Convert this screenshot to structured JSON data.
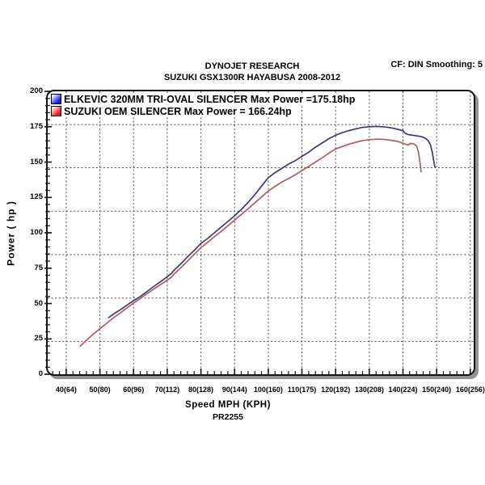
{
  "header": {
    "line1": "DYNOJET RESEARCH",
    "line2": "SUZUKI GSX1300R HAYABUSA 2008-2012",
    "right": "CF: DIN  Smoothing: 5"
  },
  "legend": [
    {
      "label": "ELKEVIC 320MM TRI-OVAL SILENCER  Max Power =175.18hp",
      "swatch_color": "#1a1ae8"
    },
    {
      "label": "SUZUKI OEM SILENCER Max Power = 166.24hp",
      "swatch_color": "#e81a1a"
    }
  ],
  "axes": {
    "x": {
      "title": "Speed MPH (KPH)",
      "tick_mph": [
        40,
        50,
        60,
        70,
        80,
        90,
        100,
        110,
        120,
        130,
        140,
        150,
        160
      ],
      "tick_labels": [
        "40(64)",
        "50(80)",
        "60(96)",
        "70(112)",
        "80(128)",
        "90(144)",
        "100(160)",
        "110(175)",
        "120(192)",
        "130(208)",
        "140(224)",
        "150(240)",
        "160(256)"
      ],
      "minor_step": 2
    },
    "y": {
      "title": "Power ( hp )",
      "ticks": [
        0,
        25,
        50,
        75,
        100,
        125,
        150,
        175,
        200
      ],
      "minor_step": 5
    }
  },
  "gridlines": {
    "vertical_mph": [
      40,
      50,
      60,
      70,
      80,
      90,
      100,
      110,
      120,
      130,
      140,
      150,
      160
    ],
    "horizontal_hp": [
      176.5,
      146,
      115.3,
      84.6,
      53.9,
      23.2
    ],
    "color": "#4a4a4a"
  },
  "footer": {
    "run_id": "PR2255"
  },
  "chart_data": {
    "type": "line",
    "title": "DYNOJET RESEARCH — SUZUKI GSX1300R HAYABUSA 2008-2012",
    "xlabel": "Speed MPH (KPH)",
    "ylabel": "Power ( hp )",
    "xlim": [
      34.5,
      161
    ],
    "ylim": [
      0,
      200
    ],
    "grid": "dashed",
    "legend_position": "top-left-inside",
    "series": [
      {
        "name": "ELKEVIC 320MM TRI-OVAL SILENCER",
        "max_power_hp": 175.18,
        "color": "#3b3b78",
        "points": [
          [
            52.6,
            40
          ],
          [
            54,
            42.5
          ],
          [
            56,
            45.5
          ],
          [
            58,
            48.8
          ],
          [
            60,
            52
          ],
          [
            62,
            55
          ],
          [
            64,
            58.5
          ],
          [
            66,
            62
          ],
          [
            68,
            65.5
          ],
          [
            70,
            69
          ],
          [
            71.2,
            71.2
          ],
          [
            72,
            73.5
          ],
          [
            74,
            78
          ],
          [
            76,
            83
          ],
          [
            78,
            87.5
          ],
          [
            80,
            92.5
          ],
          [
            82,
            96
          ],
          [
            84,
            100
          ],
          [
            86,
            104
          ],
          [
            88,
            108
          ],
          [
            90,
            112
          ],
          [
            92,
            116.5
          ],
          [
            94,
            121.5
          ],
          [
            96,
            127
          ],
          [
            98,
            133
          ],
          [
            100,
            139
          ],
          [
            102,
            142.5
          ],
          [
            104,
            145.5
          ],
          [
            106,
            148.5
          ],
          [
            108,
            151
          ],
          [
            110,
            154
          ],
          [
            112,
            157
          ],
          [
            114,
            160.5
          ],
          [
            116,
            163.5
          ],
          [
            118,
            166.5
          ],
          [
            120,
            169
          ],
          [
            122,
            170.8
          ],
          [
            124,
            172.3
          ],
          [
            126,
            173.5
          ],
          [
            128,
            174.5
          ],
          [
            130,
            175
          ],
          [
            132,
            175.2
          ],
          [
            134,
            175
          ],
          [
            136,
            174.4
          ],
          [
            138,
            173.4
          ],
          [
            140,
            172.2
          ],
          [
            140.8,
            170.2
          ],
          [
            141.6,
            169.4
          ],
          [
            143,
            168.9
          ],
          [
            144.5,
            168.4
          ],
          [
            145.6,
            167.9
          ],
          [
            146.6,
            166.9
          ],
          [
            147.4,
            165.4
          ],
          [
            148.1,
            162.5
          ],
          [
            148.7,
            157
          ],
          [
            149.2,
            150
          ],
          [
            149.5,
            146.5
          ]
        ]
      },
      {
        "name": "SUZUKI OEM SILENCER",
        "max_power_hp": 166.24,
        "color": "#b05c5c",
        "points": [
          [
            44.2,
            20
          ],
          [
            44.8,
            21.3
          ],
          [
            46,
            24
          ],
          [
            48,
            28.3
          ],
          [
            50,
            32.2
          ],
          [
            52,
            36
          ],
          [
            54,
            39.8
          ],
          [
            56,
            43.2
          ],
          [
            58,
            46.8
          ],
          [
            60,
            50.3
          ],
          [
            62,
            53.6
          ],
          [
            64,
            57
          ],
          [
            66,
            60.2
          ],
          [
            68,
            63.4
          ],
          [
            70,
            66.5
          ],
          [
            71.2,
            68.5
          ],
          [
            72,
            70.8
          ],
          [
            74,
            75.2
          ],
          [
            76,
            80
          ],
          [
            78,
            84.8
          ],
          [
            80,
            89.5
          ],
          [
            82,
            93.3
          ],
          [
            84,
            97.2
          ],
          [
            86,
            101
          ],
          [
            88,
            105
          ],
          [
            90,
            109
          ],
          [
            92,
            113
          ],
          [
            94,
            117
          ],
          [
            96,
            121.2
          ],
          [
            98,
            125.3
          ],
          [
            100,
            129.5
          ],
          [
            102,
            132.8
          ],
          [
            104,
            135.8
          ],
          [
            106,
            138.3
          ],
          [
            108,
            141
          ],
          [
            110,
            144
          ],
          [
            112,
            147
          ],
          [
            114,
            150
          ],
          [
            116,
            153
          ],
          [
            118,
            156.3
          ],
          [
            120,
            159.3
          ],
          [
            122,
            161
          ],
          [
            124,
            162.7
          ],
          [
            126,
            164
          ],
          [
            128,
            165.2
          ],
          [
            130,
            165.8
          ],
          [
            132,
            166.2
          ],
          [
            134,
            166.1
          ],
          [
            136,
            165.6
          ],
          [
            138,
            164.8
          ],
          [
            139.5,
            163.8
          ],
          [
            140.5,
            162.8
          ],
          [
            141.5,
            162
          ],
          [
            142.3,
            163.2
          ],
          [
            143.2,
            162.8
          ],
          [
            144,
            161.5
          ],
          [
            144.6,
            157
          ],
          [
            145.1,
            149
          ],
          [
            145.4,
            143
          ]
        ]
      }
    ]
  }
}
